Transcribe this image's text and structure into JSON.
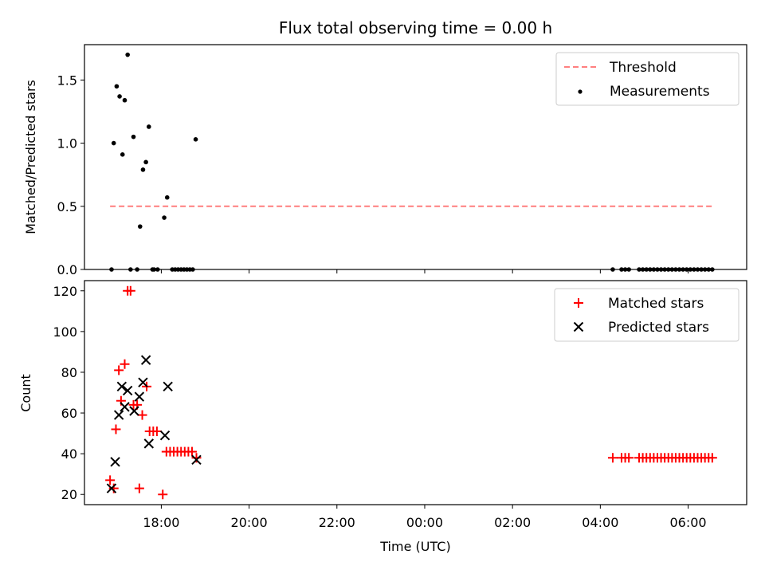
{
  "chart_data": [
    {
      "type": "scatter",
      "title": "Flux total observing time = 0.00 h",
      "xlabel": "",
      "ylabel": "Matched/Predicted stars",
      "x_range": [
        "16:15",
        "07:20"
      ],
      "ylim": [
        0,
        1.78
      ],
      "y_ticks": [
        "0.0",
        "0.5",
        "1.0",
        "1.5"
      ],
      "legend_position": "top-right",
      "threshold": {
        "name": "Threshold",
        "value": 0.5,
        "x_start": "16:50",
        "x_end": "06:35",
        "color": "#ff7f7f"
      },
      "series": [
        {
          "name": "Measurements",
          "color": "#000000",
          "points": [
            [
              "16:52",
              0.0
            ],
            [
              "16:55",
              1.0
            ],
            [
              "16:59",
              1.45
            ],
            [
              "17:03",
              1.37
            ],
            [
              "17:07",
              0.91
            ],
            [
              "17:10",
              1.34
            ],
            [
              "17:14",
              1.7
            ],
            [
              "17:18",
              0.0
            ],
            [
              "17:22",
              1.05
            ],
            [
              "17:27",
              0.0
            ],
            [
              "17:31",
              0.34
            ],
            [
              "17:35",
              0.79
            ],
            [
              "17:39",
              0.85
            ],
            [
              "17:43",
              1.13
            ],
            [
              "17:48",
              0.0
            ],
            [
              "17:50",
              0.0
            ],
            [
              "17:55",
              0.0
            ],
            [
              "18:04",
              0.41
            ],
            [
              "18:08",
              0.57
            ],
            [
              "18:15",
              0.0
            ],
            [
              "18:19",
              0.0
            ],
            [
              "18:23",
              0.0
            ],
            [
              "18:27",
              0.0
            ],
            [
              "18:31",
              0.0
            ],
            [
              "18:35",
              0.0
            ],
            [
              "18:39",
              0.0
            ],
            [
              "18:43",
              0.0
            ],
            [
              "18:47",
              1.03
            ],
            [
              "04:17",
              0.0
            ],
            [
              "04:29",
              0.0
            ],
            [
              "04:34",
              0.0
            ],
            [
              "04:39",
              0.0
            ],
            [
              "04:53",
              0.0
            ],
            [
              "04:58",
              0.0
            ],
            [
              "05:03",
              0.0
            ],
            [
              "05:08",
              0.0
            ],
            [
              "05:13",
              0.0
            ],
            [
              "05:18",
              0.0
            ],
            [
              "05:23",
              0.0
            ],
            [
              "05:28",
              0.0
            ],
            [
              "05:33",
              0.0
            ],
            [
              "05:38",
              0.0
            ],
            [
              "05:43",
              0.0
            ],
            [
              "05:48",
              0.0
            ],
            [
              "05:53",
              0.0
            ],
            [
              "05:58",
              0.0
            ],
            [
              "06:03",
              0.0
            ],
            [
              "06:08",
              0.0
            ],
            [
              "06:13",
              0.0
            ],
            [
              "06:18",
              0.0
            ],
            [
              "06:23",
              0.0
            ],
            [
              "06:28",
              0.0
            ],
            [
              "06:33",
              0.0
            ]
          ]
        }
      ]
    },
    {
      "type": "scatter",
      "title": "",
      "xlabel": "Time (UTC)",
      "ylabel": "Count",
      "x_range": [
        "16:15",
        "07:20"
      ],
      "x_ticks": [
        "18:00",
        "20:00",
        "22:00",
        "00:00",
        "02:00",
        "04:00",
        "06:00"
      ],
      "ylim": [
        15,
        125
      ],
      "y_ticks": [
        "20",
        "40",
        "60",
        "80",
        "100",
        "120"
      ],
      "legend_position": "top-right",
      "series": [
        {
          "name": "Matched stars",
          "marker": "plus",
          "color": "#ff0000",
          "points": [
            [
              "16:50",
              27
            ],
            [
              "16:55",
              23
            ],
            [
              "16:58",
              52
            ],
            [
              "17:02",
              81
            ],
            [
              "17:05",
              66
            ],
            [
              "17:10",
              84
            ],
            [
              "17:14",
              120
            ],
            [
              "17:18",
              120
            ],
            [
              "17:22",
              64
            ],
            [
              "17:27",
              64
            ],
            [
              "17:30",
              23
            ],
            [
              "17:34",
              59
            ],
            [
              "17:40",
              73
            ],
            [
              "17:44",
              51
            ],
            [
              "17:49",
              51
            ],
            [
              "17:54",
              51
            ],
            [
              "18:02",
              20
            ],
            [
              "18:07",
              41
            ],
            [
              "18:12",
              41
            ],
            [
              "18:17",
              41
            ],
            [
              "18:22",
              41
            ],
            [
              "18:27",
              41
            ],
            [
              "18:32",
              41
            ],
            [
              "18:37",
              41
            ],
            [
              "18:42",
              41
            ],
            [
              "18:48",
              38
            ],
            [
              "04:17",
              38
            ],
            [
              "04:29",
              38
            ],
            [
              "04:34",
              38
            ],
            [
              "04:39",
              38
            ],
            [
              "04:53",
              38
            ],
            [
              "04:58",
              38
            ],
            [
              "05:03",
              38
            ],
            [
              "05:08",
              38
            ],
            [
              "05:13",
              38
            ],
            [
              "05:18",
              38
            ],
            [
              "05:23",
              38
            ],
            [
              "05:28",
              38
            ],
            [
              "05:33",
              38
            ],
            [
              "05:38",
              38
            ],
            [
              "05:43",
              38
            ],
            [
              "05:48",
              38
            ],
            [
              "05:53",
              38
            ],
            [
              "05:58",
              38
            ],
            [
              "06:03",
              38
            ],
            [
              "06:08",
              38
            ],
            [
              "06:13",
              38
            ],
            [
              "06:18",
              38
            ],
            [
              "06:23",
              38
            ],
            [
              "06:28",
              38
            ],
            [
              "06:33",
              38
            ]
          ]
        },
        {
          "name": "Predicted stars",
          "marker": "x",
          "color": "#000000",
          "points": [
            [
              "16:52",
              23
            ],
            [
              "16:57",
              36
            ],
            [
              "17:02",
              59
            ],
            [
              "17:06",
              73
            ],
            [
              "17:10",
              63
            ],
            [
              "17:14",
              71
            ],
            [
              "17:23",
              61
            ],
            [
              "17:30",
              68
            ],
            [
              "17:35",
              75
            ],
            [
              "17:39",
              86
            ],
            [
              "17:43",
              45
            ],
            [
              "18:05",
              49
            ],
            [
              "18:09",
              73
            ],
            [
              "18:48",
              37
            ]
          ]
        }
      ]
    }
  ]
}
